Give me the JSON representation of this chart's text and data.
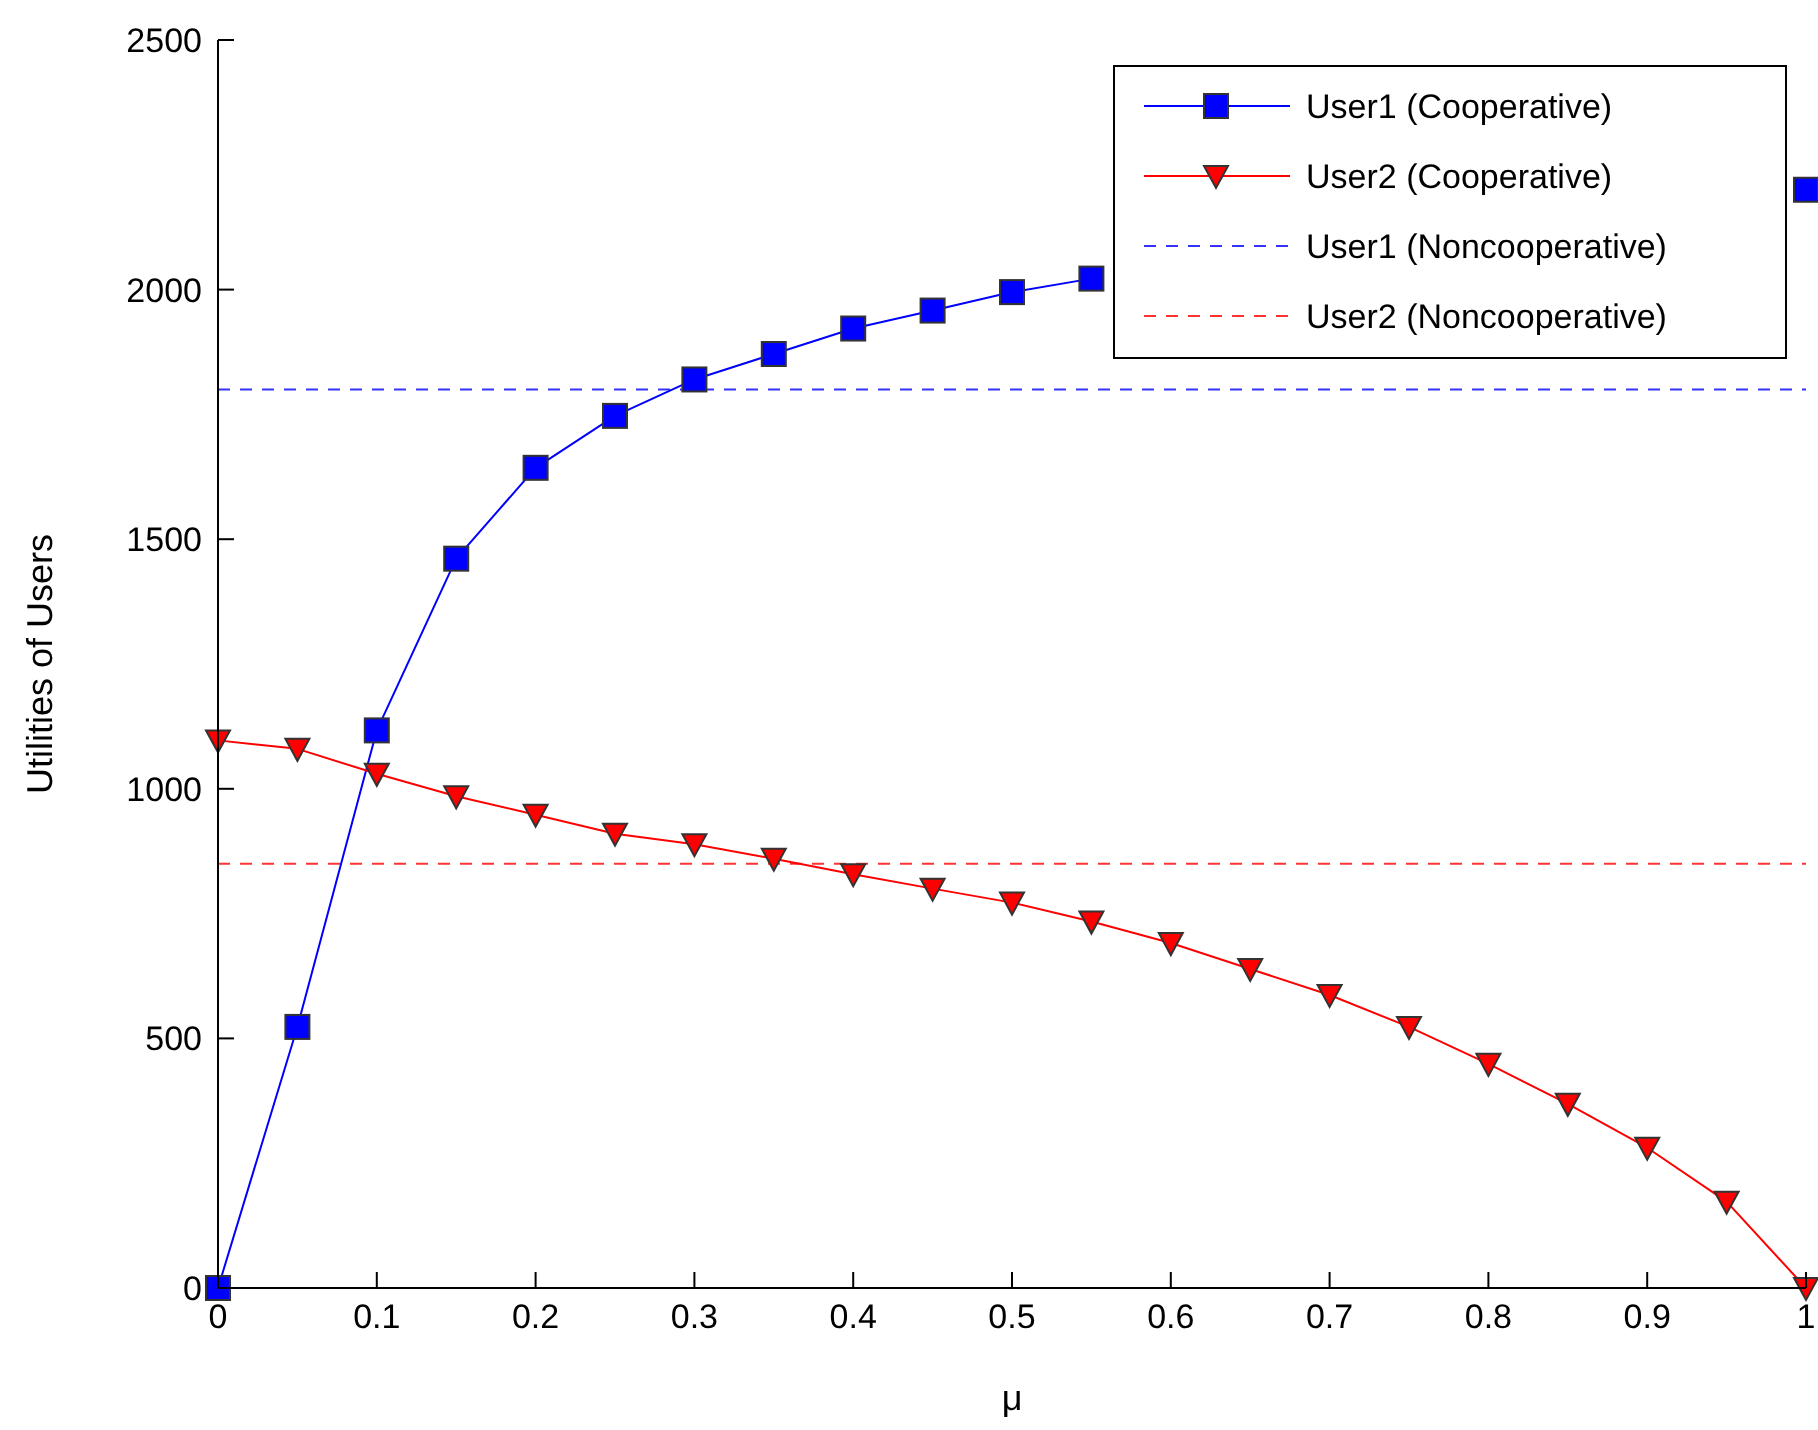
{
  "chart_data": {
    "type": "line",
    "xlabel": "μ",
    "ylabel": "Utilities of Users",
    "x": [
      0,
      0.05,
      0.1,
      0.15,
      0.2,
      0.25,
      0.3,
      0.35,
      0.4,
      0.45,
      0.5,
      0.55,
      0.6,
      0.65,
      0.7,
      0.75,
      0.8,
      0.85,
      0.9,
      0.95,
      1
    ],
    "series": [
      {
        "name": "User1 (Cooperative)",
        "color": "#0000ff",
        "marker": "square",
        "line_style": "solid",
        "values": [
          0,
          523,
          1117,
          1461,
          1643,
          1747,
          1820,
          1871,
          1922,
          1958,
          1995,
          2022,
          null,
          null,
          null,
          null,
          null,
          null,
          null,
          null,
          2200
        ]
      },
      {
        "name": "User2 (Cooperative)",
        "color": "#ff0000",
        "marker": "triangle",
        "line_style": "solid",
        "values": [
          1097,
          1080,
          1030,
          985,
          948,
          910,
          889,
          860,
          829,
          800,
          772,
          734,
          691,
          639,
          587,
          523,
          449,
          369,
          281,
          173,
          0
        ]
      }
    ],
    "ref_lines": [
      {
        "axis": "y",
        "value": 1800,
        "label": "User1 (Noncooperative)",
        "color": "#3333ff",
        "line_style": "dashed"
      },
      {
        "axis": "y",
        "value": 850,
        "label": "User2 (Noncooperative)",
        "color": "#ff3333",
        "line_style": "dashed"
      }
    ],
    "xlim": [
      0,
      1
    ],
    "xticks": [
      0,
      0.1,
      0.2,
      0.3,
      0.4,
      0.5,
      0.6,
      0.7,
      0.8,
      0.9,
      1
    ],
    "ylim": [
      0,
      2500
    ],
    "yticks": [
      0,
      500,
      1000,
      1500,
      2000,
      2500
    ],
    "grid": false,
    "legend": "top right"
  }
}
